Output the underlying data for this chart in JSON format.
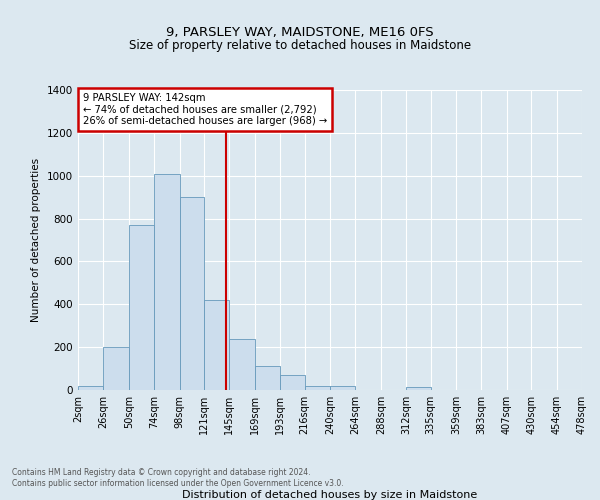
{
  "title": "9, PARSLEY WAY, MAIDSTONE, ME16 0FS",
  "subtitle": "Size of property relative to detached houses in Maidstone",
  "xlabel": "Distribution of detached houses by size in Maidstone",
  "ylabel": "Number of detached properties",
  "bin_labels": [
    "2sqm",
    "26sqm",
    "50sqm",
    "74sqm",
    "98sqm",
    "121sqm",
    "145sqm",
    "169sqm",
    "193sqm",
    "216sqm",
    "240sqm",
    "264sqm",
    "288sqm",
    "312sqm",
    "335sqm",
    "359sqm",
    "383sqm",
    "407sqm",
    "430sqm",
    "454sqm",
    "478sqm"
  ],
  "bar_values": [
    20,
    200,
    770,
    1010,
    900,
    420,
    240,
    110,
    70,
    20,
    20,
    0,
    0,
    15,
    0,
    0,
    0,
    0,
    0,
    0
  ],
  "bar_color": "#ccdded",
  "bar_edge_color": "#6699bb",
  "ylim": [
    0,
    1400
  ],
  "yticks": [
    0,
    200,
    400,
    600,
    800,
    1000,
    1200,
    1400
  ],
  "vline_x": 142,
  "vline_color": "#cc0000",
  "annotation_title": "9 PARSLEY WAY: 142sqm",
  "annotation_line1": "← 74% of detached houses are smaller (2,792)",
  "annotation_line2": "26% of semi-detached houses are larger (968) →",
  "annotation_box_color": "#ffffff",
  "annotation_box_edge": "#cc0000",
  "background_color": "#dce8f0",
  "plot_background": "#dce8f0",
  "footer_line1": "Contains HM Land Registry data © Crown copyright and database right 2024.",
  "footer_line2": "Contains public sector information licensed under the Open Government Licence v3.0.",
  "bin_edges": [
    2,
    26,
    50,
    74,
    98,
    121,
    145,
    169,
    193,
    216,
    240,
    264,
    288,
    312,
    335,
    359,
    383,
    407,
    430,
    454,
    478
  ]
}
